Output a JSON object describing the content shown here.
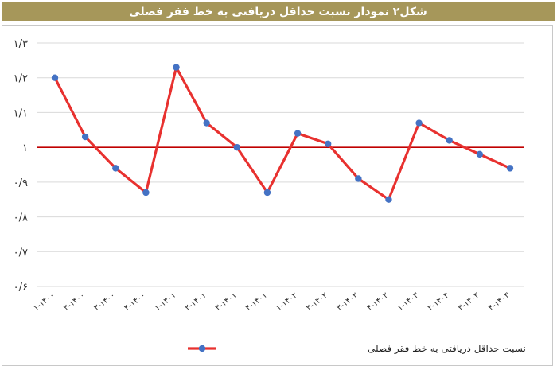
{
  "header": {
    "title": "شکل۲ نمودار نسبت حداقل دریافتی به خط فقر فصلی"
  },
  "chart_data": {
    "type": "line",
    "title": "شکل۲ نمودار نسبت حداقل دریافتی به خط فقر فصلی",
    "xlabel": "",
    "ylabel": "",
    "ylim": [
      0.6,
      1.3
    ],
    "y_ticks": [
      0.6,
      0.7,
      0.8,
      0.9,
      1.0,
      1.1,
      1.2,
      1.3
    ],
    "y_tick_labels": [
      "۰/۶",
      "۰/۷",
      "۰/۸",
      "۰/۹",
      "۱",
      "۱/۱",
      "۱/۲",
      "۱/۳"
    ],
    "categories": [
      "۱-۱۴۰۰",
      "۲-۱۴۰۰",
      "۳-۱۴۰۰",
      "۴-۱۴۰۰",
      "۱-۱۴۰۱",
      "۲-۱۴۰۱",
      "۳-۱۴۰۱",
      "۴-۱۴۰۱",
      "۱-۱۴۰۲",
      "۲-۱۴۰۲",
      "۳-۱۴۰۲",
      "۴-۱۴۰۲",
      "۱-۱۴۰۳",
      "۲-۱۴۰۳",
      "۳-۱۴۰۳",
      "۴-۱۴۰۳"
    ],
    "series": [
      {
        "name": "نسبت حداقل دریافتی به خط فقر فصلی",
        "line_color": "#e8312f",
        "marker_color": "#4472c4",
        "values": [
          1.2,
          1.03,
          0.94,
          0.87,
          1.23,
          1.07,
          1.0,
          0.87,
          1.04,
          1.01,
          0.91,
          0.85,
          1.07,
          1.02,
          0.98,
          0.94
        ]
      }
    ],
    "reference_line": {
      "y": 1.0,
      "color": "#c00000"
    },
    "grid": {
      "horizontal": true,
      "vertical": false
    },
    "legend": {
      "position": "bottom"
    }
  }
}
